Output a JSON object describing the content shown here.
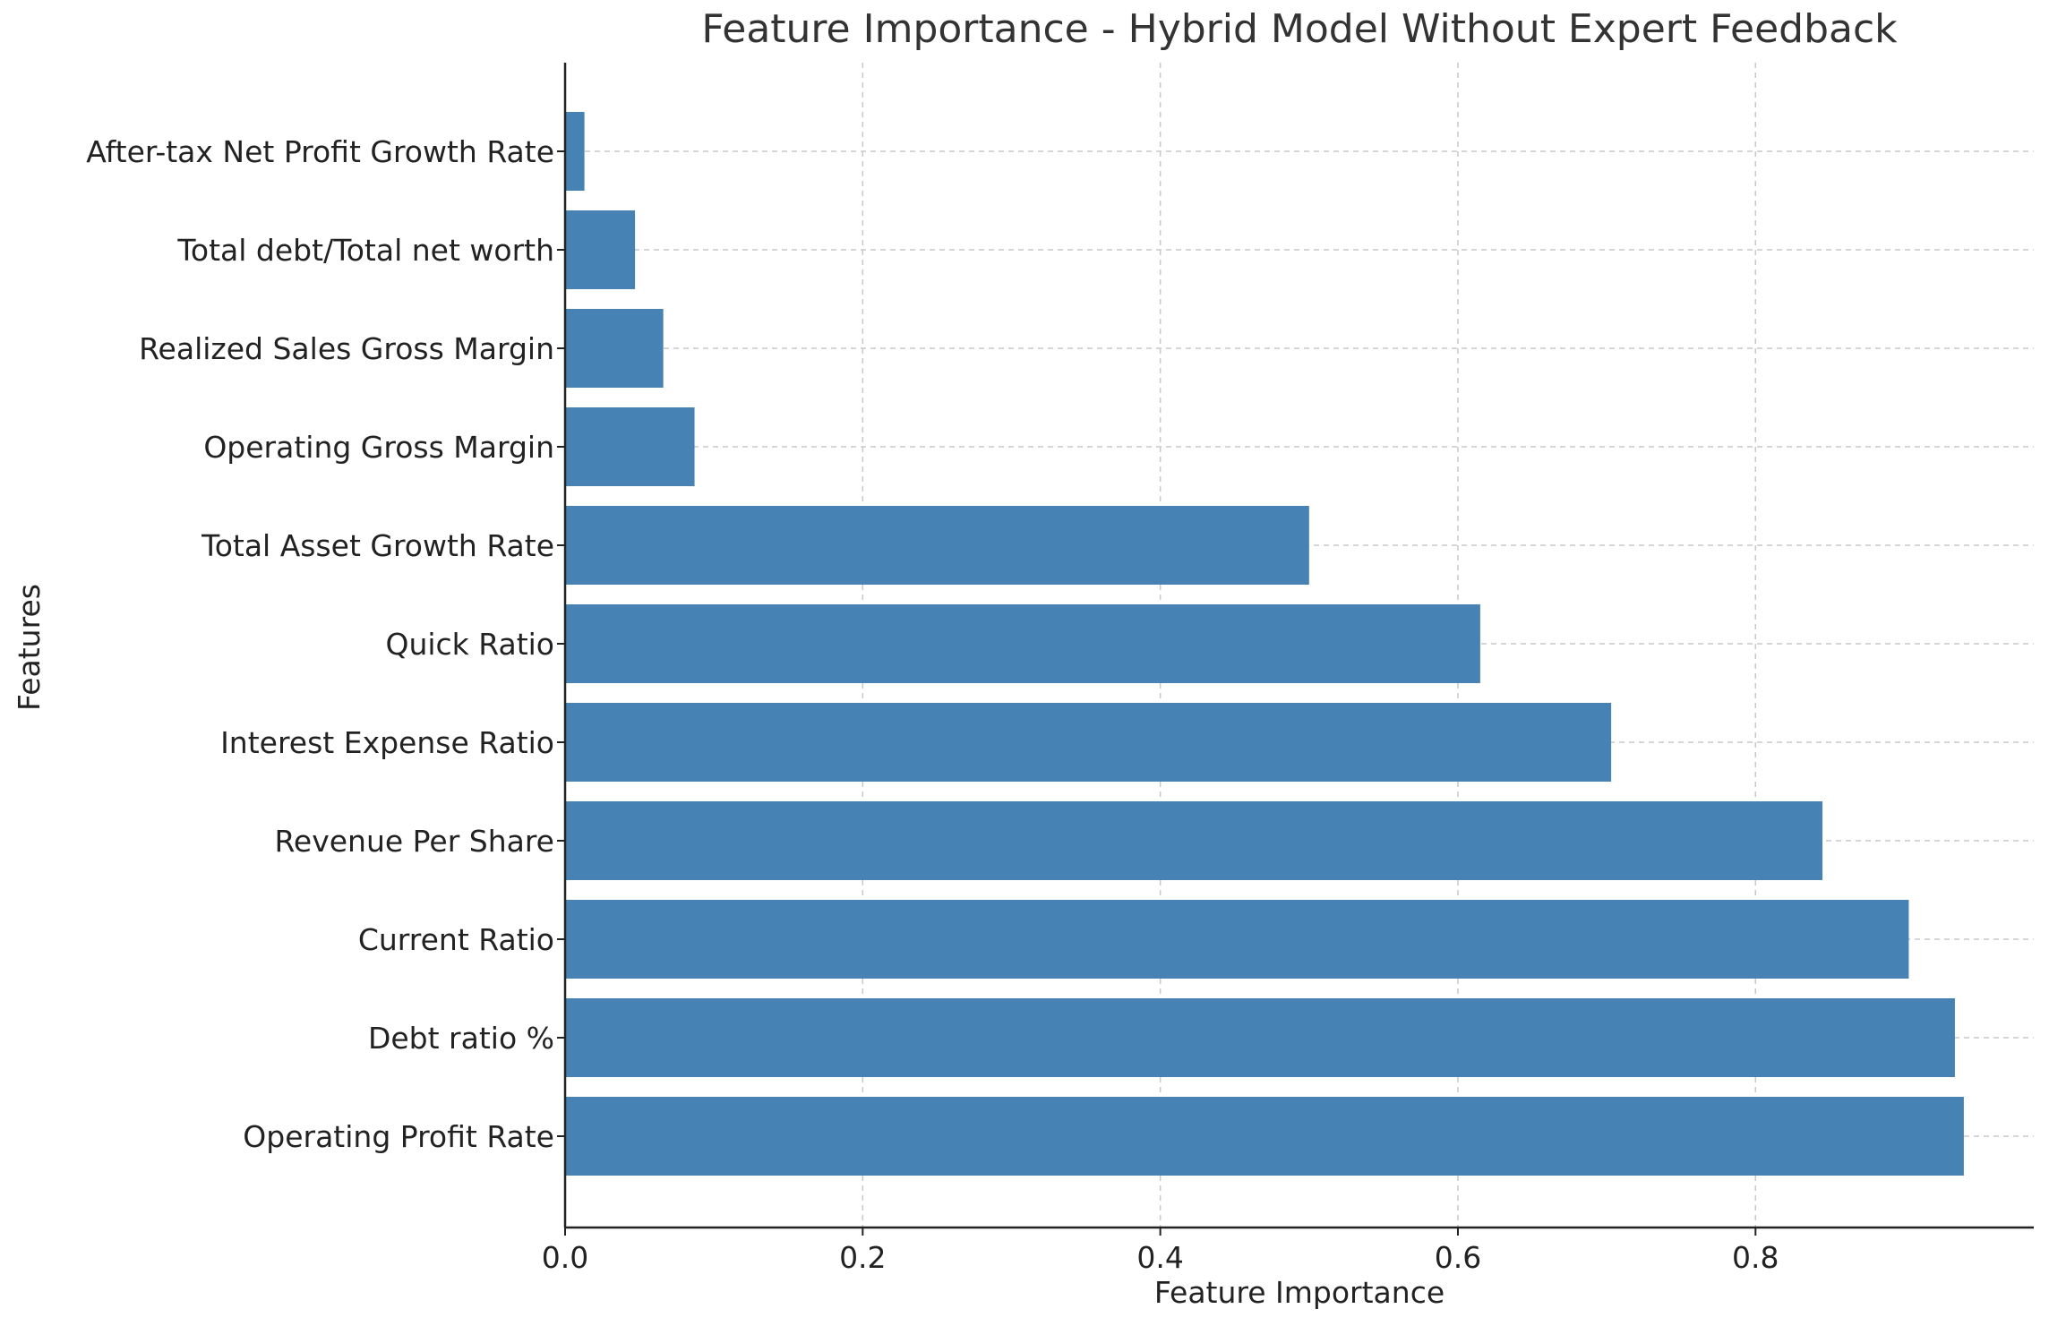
{
  "chart_data": {
    "type": "bar",
    "orientation": "horizontal",
    "title": "Feature Importance - Hybrid Model Without Expert Feedback",
    "xlabel": "Feature Importance",
    "ylabel": "Features",
    "xlim": [
      0,
      0.987
    ],
    "x_ticks": [
      0.0,
      0.2,
      0.4,
      0.6,
      0.8
    ],
    "x_tick_labels": [
      "0.0",
      "0.2",
      "0.4",
      "0.6",
      "0.8"
    ],
    "grid": true,
    "bar_color": "#4682b4",
    "categories": [
      "Operating Profit Rate",
      "Debt ratio %",
      "Current Ratio",
      "Revenue Per Share",
      "Interest Expense Ratio",
      "Quick Ratio",
      "Total Asset Growth Rate",
      "Operating Gross Margin",
      "Realized Sales Gross Margin",
      "Total debt/Total net worth",
      "After-tax Net Profit Growth Rate"
    ],
    "values": [
      0.94,
      0.934,
      0.903,
      0.845,
      0.703,
      0.615,
      0.5,
      0.087,
      0.066,
      0.047,
      0.013
    ]
  }
}
